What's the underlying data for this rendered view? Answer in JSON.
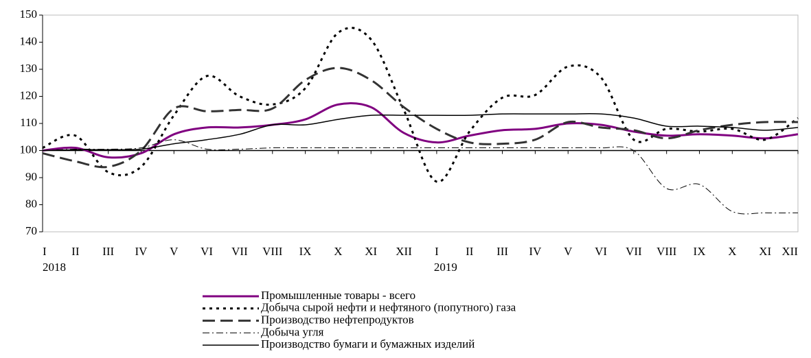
{
  "chart_data": {
    "type": "line",
    "categories": [
      "I",
      "II",
      "III",
      "IV",
      "V",
      "VI",
      "VII",
      "VIII",
      "IX",
      "X",
      "XI",
      "XII",
      "I",
      "II",
      "III",
      "IV",
      "V",
      "VI",
      "VII",
      "VIII",
      "IX",
      "X",
      "XI",
      "XII"
    ],
    "years": [
      "2018",
      null,
      null,
      null,
      null,
      null,
      null,
      null,
      null,
      null,
      null,
      null,
      "2019",
      null,
      null,
      null,
      null,
      null,
      null,
      null,
      null,
      null,
      null,
      null
    ],
    "ylim": [
      70,
      150
    ],
    "yticks": [
      70,
      80,
      90,
      100,
      110,
      120,
      130,
      140,
      150
    ],
    "x_axis_crosses": 100,
    "series": [
      {
        "name": "Промышленные товары - всего",
        "color": "#800080",
        "dash": "solid",
        "width": 3,
        "values": [
          100,
          101,
          97.5,
          99,
          106,
          108.5,
          108.5,
          109.5,
          111.5,
          117,
          116,
          106.5,
          103,
          105.5,
          107.5,
          108,
          110,
          109.5,
          107,
          105.5,
          106,
          105.5,
          104.5,
          106
        ]
      },
      {
        "name": "Добыча сырой нефти и нефтяного (попутного) газа",
        "color": "#000000",
        "dash": "dotted",
        "width": 3,
        "values": [
          101,
          105.5,
          92,
          94,
          113,
          127.5,
          120,
          117,
          123,
          143.5,
          141,
          115,
          88.5,
          107,
          119.5,
          120.5,
          131,
          127,
          104,
          108,
          107,
          108,
          104,
          112
        ]
      },
      {
        "name": "Производство нефтепродуктов",
        "color": "#333333",
        "dash": "dashed",
        "width": 3,
        "values": [
          99,
          96,
          94,
          100,
          115.5,
          114.5,
          115,
          115.5,
          126,
          130.5,
          126,
          116,
          108,
          103,
          102.5,
          104,
          110.5,
          108.5,
          107.5,
          104.5,
          107.5,
          109.5,
          110.5,
          110.5
        ]
      },
      {
        "name": "Добыча угля",
        "color": "#000000",
        "dash": "dashdot",
        "width": 1,
        "values": [
          100,
          100.5,
          100.5,
          101,
          104,
          100.5,
          100.5,
          101,
          101,
          101,
          101,
          101,
          101,
          101,
          101,
          101,
          101,
          101,
          100,
          86,
          87.5,
          77.5,
          77,
          77
        ]
      },
      {
        "name": "Производство бумаги и бумажных изделий",
        "color": "#000000",
        "dash": "solid",
        "width": 1.5,
        "values": [
          100,
          100.3,
          100.3,
          100.5,
          102.5,
          104,
          106,
          109.5,
          109.5,
          111.5,
          113,
          113,
          113,
          113,
          113.5,
          113.5,
          113.5,
          113.5,
          112,
          109,
          109,
          108.5,
          107.5,
          108.5
        ]
      }
    ]
  }
}
